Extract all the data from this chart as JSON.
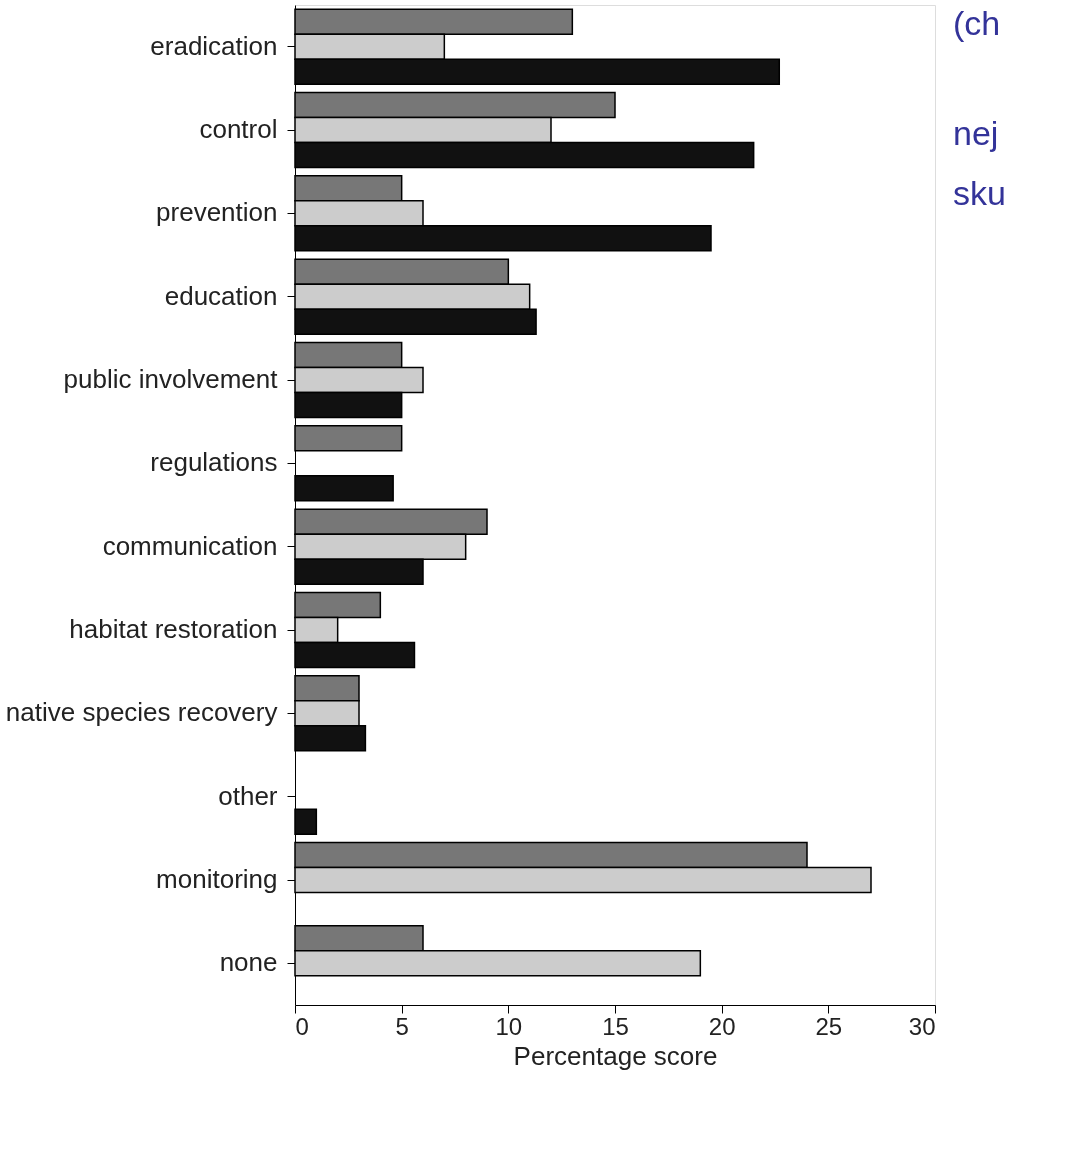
{
  "chart_data": {
    "type": "bar",
    "orientation": "horizontal",
    "xlabel": "Percentage score",
    "categories": [
      "eradication",
      "control",
      "prevention",
      "education",
      "public involvement",
      "regulations",
      "communication",
      "habitat restoration",
      "native species recovery",
      "other",
      "monitoring",
      "none"
    ],
    "series": [
      {
        "color": "#777777",
        "values": [
          13,
          15,
          5,
          10,
          5,
          5,
          9,
          4,
          3,
          null,
          24,
          6
        ]
      },
      {
        "color": "#cccccc",
        "values": [
          7,
          12,
          6,
          11,
          6,
          null,
          8,
          2,
          3,
          null,
          27,
          19
        ]
      },
      {
        "color": "#111111",
        "values": [
          22.7,
          21.5,
          19.5,
          11.3,
          5,
          4.6,
          6,
          5.6,
          3.3,
          1,
          null,
          null
        ]
      }
    ],
    "xlim": [
      0,
      30
    ],
    "xticks": [
      0,
      5,
      10,
      15,
      20,
      25,
      30
    ],
    "grid": false,
    "legend": false,
    "annotations": [
      "(ch",
      "nej",
      "sku"
    ]
  }
}
